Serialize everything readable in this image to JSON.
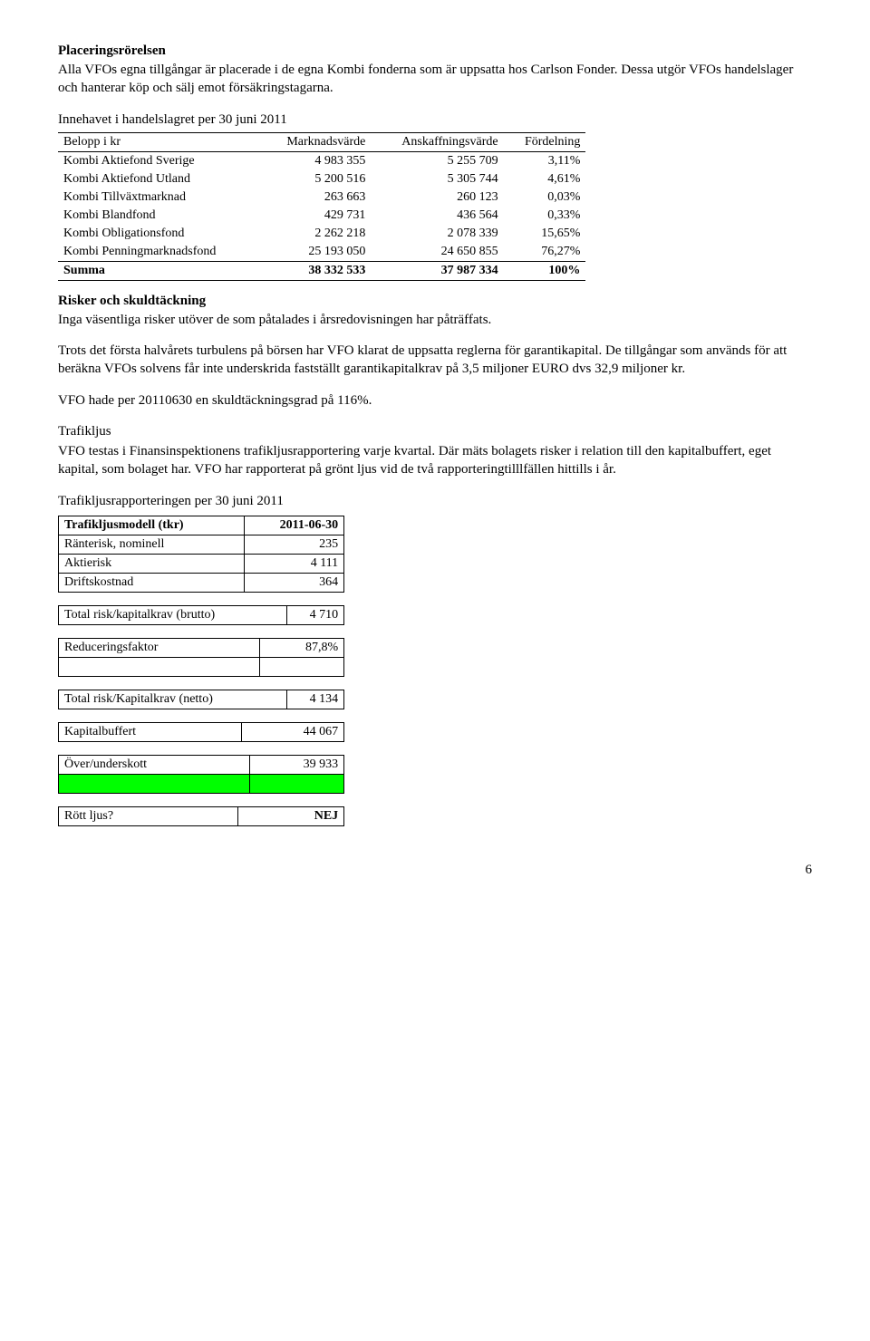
{
  "section1": {
    "title": "Placeringsrörelsen",
    "body": "Alla VFOs egna tillgångar är placerade i de egna Kombi fonderna som är uppsatta hos Carlson Fonder. Dessa utgör VFOs handelslager och hanterar köp och sälj emot försäkringstagarna."
  },
  "holdings": {
    "title": "Innehavet i handelslagret per 30 juni 2011",
    "headers": [
      "Belopp i kr",
      "Marknadsvärde",
      "Anskaffningsvärde",
      "Fördelning"
    ],
    "rows": [
      {
        "name": "Kombi Aktiefond Sverige",
        "mv": "4 983 355",
        "av": "5 255 709",
        "pct": "3,11%"
      },
      {
        "name": "Kombi Aktiefond Utland",
        "mv": "5 200 516",
        "av": "5 305 744",
        "pct": "4,61%"
      },
      {
        "name": "Kombi Tillväxtmarknad",
        "mv": "263 663",
        "av": "260 123",
        "pct": "0,03%"
      },
      {
        "name": "Kombi Blandfond",
        "mv": "429 731",
        "av": "436 564",
        "pct": "0,33%"
      },
      {
        "name": "Kombi Obligationsfond",
        "mv": "2 262 218",
        "av": "2 078 339",
        "pct": "15,65%"
      },
      {
        "name": "Kombi Penningmarknadsfond",
        "mv": "25 193 050",
        "av": "24 650 855",
        "pct": "76,27%"
      }
    ],
    "sum": {
      "name": "Summa",
      "mv": "38 332 533",
      "av": "37 987 334",
      "pct": "100%"
    }
  },
  "risk": {
    "title": "Risker och skuldtäckning",
    "p1": "Inga väsentliga risker utöver de som påtalades i årsredovisningen har påträffats.",
    "p2": "Trots det första halvårets turbulens på börsen har VFO klarat de uppsatta reglerna för garantikapital. De tillgångar som används för att beräkna VFOs solvens får inte underskrida fastställt garantikapitalkrav på 3,5 miljoner EURO dvs 32,9 miljoner kr.",
    "p3": "VFO hade per 20110630 en skuldtäckningsgrad på 116%."
  },
  "trafik": {
    "title": "Trafikljus",
    "body": "VFO testas i Finansinspektionens trafikljusrapportering varje kvartal. Där mäts bolagets risker i relation till den kapitalbuffert, eget kapital, som bolaget har. VFO har rapporterat på grönt ljus vid de två  rapporteringtilllfällen hittills i år.",
    "report_title": "Trafikljusrapporteringen per 30 juni 2011",
    "model_header": {
      "label": "Trafikljusmodell (tkr)",
      "date": "2011-06-30"
    },
    "rows1": [
      {
        "label": "Ränterisk, nominell",
        "val": "235"
      },
      {
        "label": "Aktierisk",
        "val": "4 111"
      },
      {
        "label": "Driftskostnad",
        "val": "364"
      }
    ],
    "brutto": {
      "label": "Total risk/kapitalkrav (brutto)",
      "val": "4 710"
    },
    "reducer": {
      "label": "Reduceringsfaktor",
      "val": "87,8%"
    },
    "netto": {
      "label": "Total risk/Kapitalkrav (netto)",
      "val": "4 134"
    },
    "buffer": {
      "label": "Kapitalbuffert",
      "val": "44 067"
    },
    "over": {
      "label": "Över/underskott",
      "val": "39 933"
    },
    "rott": {
      "label": "Rött ljus?",
      "val": "NEJ"
    }
  },
  "page_number": "6"
}
